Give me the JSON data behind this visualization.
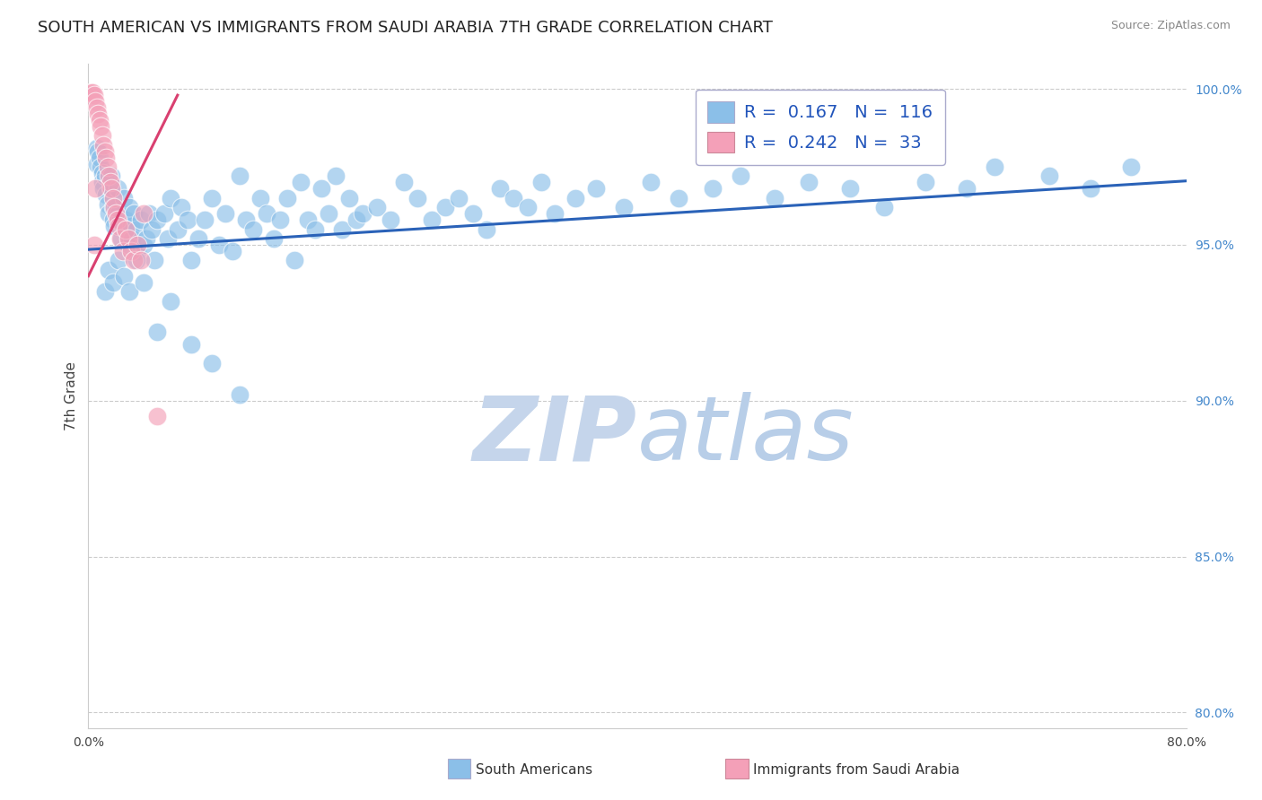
{
  "title": "SOUTH AMERICAN VS IMMIGRANTS FROM SAUDI ARABIA 7TH GRADE CORRELATION CHART",
  "source": "Source: ZipAtlas.com",
  "ylabel": "7th Grade",
  "xlim": [
    0.0,
    0.8
  ],
  "ylim": [
    0.795,
    1.008
  ],
  "yticks": [
    0.8,
    0.85,
    0.9,
    0.95,
    1.0
  ],
  "ytick_labels": [
    "80.0%",
    "85.0%",
    "90.0%",
    "95.0%",
    "100.0%"
  ],
  "xticks": [
    0.0,
    0.1,
    0.2,
    0.3,
    0.4,
    0.5,
    0.6,
    0.7,
    0.8
  ],
  "xtick_labels": [
    "0.0%",
    "",
    "",
    "",
    "",
    "",
    "",
    "",
    "80.0%"
  ],
  "blue_color": "#8bbfe8",
  "pink_color": "#f4a0b8",
  "blue_line_color": "#2a62b8",
  "pink_line_color": "#d94070",
  "R_blue": 0.167,
  "N_blue": 116,
  "R_pink": 0.242,
  "N_pink": 33,
  "watermark": "ZIPatlas",
  "watermark_blue": "#c5d8ef",
  "watermark_atlas": "#b8cde8",
  "title_fontsize": 13,
  "axis_label_fontsize": 11,
  "tick_fontsize": 10,
  "legend_fontsize": 14,
  "blue_trend_x": [
    0.0,
    0.8
  ],
  "blue_trend_y": [
    0.9485,
    0.9705
  ],
  "pink_trend_x": [
    0.0,
    0.065
  ],
  "pink_trend_y": [
    0.94,
    0.998
  ],
  "blue_x": [
    0.006,
    0.006,
    0.007,
    0.008,
    0.009,
    0.01,
    0.01,
    0.011,
    0.012,
    0.013,
    0.014,
    0.015,
    0.016,
    0.017,
    0.018,
    0.018,
    0.019,
    0.02,
    0.021,
    0.022,
    0.023,
    0.024,
    0.025,
    0.026,
    0.027,
    0.028,
    0.029,
    0.03,
    0.031,
    0.032,
    0.033,
    0.035,
    0.036,
    0.038,
    0.04,
    0.042,
    0.044,
    0.046,
    0.048,
    0.05,
    0.055,
    0.058,
    0.06,
    0.065,
    0.068,
    0.072,
    0.075,
    0.08,
    0.085,
    0.09,
    0.095,
    0.1,
    0.105,
    0.11,
    0.115,
    0.12,
    0.125,
    0.13,
    0.135,
    0.14,
    0.145,
    0.15,
    0.155,
    0.16,
    0.165,
    0.17,
    0.175,
    0.18,
    0.185,
    0.19,
    0.195,
    0.2,
    0.21,
    0.22,
    0.23,
    0.24,
    0.25,
    0.26,
    0.27,
    0.28,
    0.29,
    0.3,
    0.31,
    0.32,
    0.33,
    0.34,
    0.355,
    0.37,
    0.39,
    0.41,
    0.43,
    0.455,
    0.475,
    0.5,
    0.525,
    0.555,
    0.58,
    0.61,
    0.64,
    0.66,
    0.7,
    0.73,
    0.76,
    0.012,
    0.015,
    0.018,
    0.022,
    0.026,
    0.03,
    0.035,
    0.04,
    0.05,
    0.06,
    0.075,
    0.09,
    0.11
  ],
  "blue_y": [
    0.981,
    0.976,
    0.98,
    0.978,
    0.975,
    0.973,
    0.97,
    0.968,
    0.972,
    0.966,
    0.963,
    0.96,
    0.968,
    0.972,
    0.962,
    0.958,
    0.956,
    0.962,
    0.968,
    0.96,
    0.958,
    0.952,
    0.956,
    0.965,
    0.958,
    0.955,
    0.95,
    0.962,
    0.956,
    0.952,
    0.96,
    0.955,
    0.948,
    0.958,
    0.95,
    0.952,
    0.96,
    0.955,
    0.945,
    0.958,
    0.96,
    0.952,
    0.965,
    0.955,
    0.962,
    0.958,
    0.945,
    0.952,
    0.958,
    0.965,
    0.95,
    0.96,
    0.948,
    0.972,
    0.958,
    0.955,
    0.965,
    0.96,
    0.952,
    0.958,
    0.965,
    0.945,
    0.97,
    0.958,
    0.955,
    0.968,
    0.96,
    0.972,
    0.955,
    0.965,
    0.958,
    0.96,
    0.962,
    0.958,
    0.97,
    0.965,
    0.958,
    0.962,
    0.965,
    0.96,
    0.955,
    0.968,
    0.965,
    0.962,
    0.97,
    0.96,
    0.965,
    0.968,
    0.962,
    0.97,
    0.965,
    0.968,
    0.972,
    0.965,
    0.97,
    0.968,
    0.962,
    0.97,
    0.968,
    0.975,
    0.972,
    0.968,
    0.975,
    0.935,
    0.942,
    0.938,
    0.945,
    0.94,
    0.935,
    0.945,
    0.938,
    0.922,
    0.932,
    0.918,
    0.912,
    0.902
  ],
  "pink_x": [
    0.002,
    0.003,
    0.004,
    0.005,
    0.006,
    0.007,
    0.008,
    0.009,
    0.01,
    0.011,
    0.012,
    0.013,
    0.014,
    0.015,
    0.016,
    0.017,
    0.018,
    0.019,
    0.02,
    0.021,
    0.022,
    0.023,
    0.025,
    0.027,
    0.029,
    0.031,
    0.033,
    0.036,
    0.038,
    0.04,
    0.005,
    0.05,
    0.004
  ],
  "pink_y": [
    0.999,
    0.999,
    0.998,
    0.996,
    0.994,
    0.992,
    0.99,
    0.988,
    0.985,
    0.982,
    0.98,
    0.978,
    0.975,
    0.972,
    0.97,
    0.968,
    0.965,
    0.962,
    0.96,
    0.958,
    0.956,
    0.952,
    0.948,
    0.955,
    0.952,
    0.948,
    0.945,
    0.95,
    0.945,
    0.96,
    0.968,
    0.895,
    0.95
  ]
}
